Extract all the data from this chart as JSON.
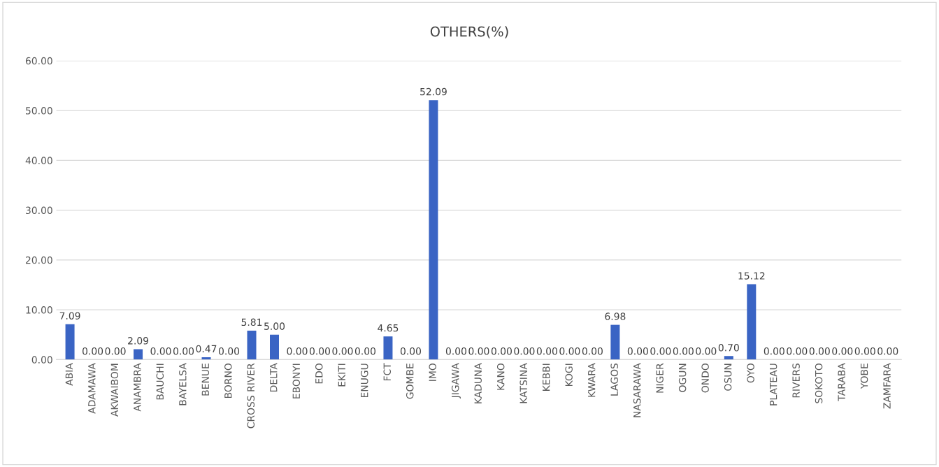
{
  "chart_data": {
    "type": "bar",
    "title": "OTHERS(%)",
    "categories": [
      "ABIA",
      "ADAMAWA",
      "AKWAIBOM",
      "ANAMBRA",
      "BAUCHI",
      "BAYELSA",
      "BENUE",
      "BORNO",
      "CROSS RIVER",
      "DELTA",
      "EBONYI",
      "EDO",
      "EKITI",
      "ENUGU",
      "FCT",
      "GOMBE",
      "IMO",
      "JIGAWA",
      "KADUNA",
      "KANO",
      "KATSINA",
      "KEBBI",
      "KOGI",
      "KWARA",
      "LAGOS",
      "NASARAWA",
      "NIGER",
      "OGUN",
      "ONDO",
      "OSUN",
      "OYO",
      "PLATEAU",
      "RIVERS",
      "SOKOTO",
      "TARABA",
      "YOBE",
      "ZAMFARA"
    ],
    "values": [
      7.09,
      0,
      0,
      2.09,
      0,
      0,
      0.47,
      0,
      5.81,
      5.0,
      0,
      0,
      0,
      0,
      4.65,
      0,
      52.09,
      0,
      0,
      0,
      0,
      0,
      0,
      0,
      6.98,
      0,
      0,
      0,
      0,
      0.7,
      15.12,
      0,
      0,
      0,
      0,
      0,
      0
    ],
    "value_labels": [
      "7.09",
      "0.00",
      "0.00",
      "2.09",
      "0.00",
      "0.00",
      "0.47",
      "0.00",
      "5.81",
      "5.00",
      "0.00",
      "0.00",
      "0.00",
      "0.00",
      "4.65",
      "0.00",
      "52.09",
      "0.00",
      "0.00",
      "0.00",
      "0.00",
      "0.00",
      "0.00",
      "0.00",
      "6.98",
      "0.00",
      "0.00",
      "0.00",
      "0.00",
      "0.70",
      "15.12",
      "0.00",
      "0.00",
      "0.00",
      "0.00",
      "0.00",
      "0.00"
    ],
    "color": "#3a64c4",
    "ylim": [
      0,
      60
    ],
    "yticks": [
      {
        "value": 0,
        "label": "0.00"
      },
      {
        "value": 10,
        "label": "10.00"
      },
      {
        "value": 20,
        "label": "20.00"
      },
      {
        "value": 30,
        "label": "30.00"
      },
      {
        "value": 40,
        "label": "40.00"
      },
      {
        "value": 50,
        "label": "50.00"
      },
      {
        "value": 60,
        "label": "60.00"
      }
    ],
    "grid": "y"
  }
}
